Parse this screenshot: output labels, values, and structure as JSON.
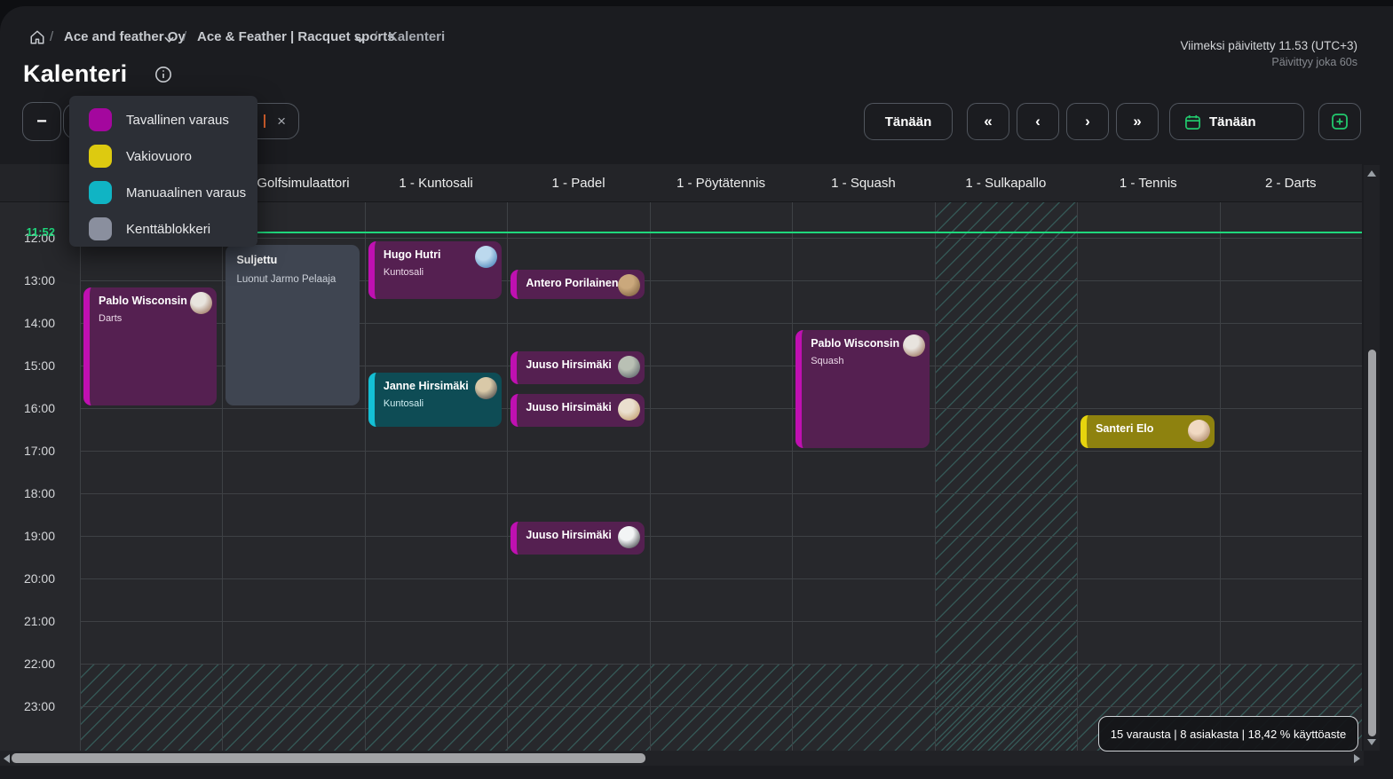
{
  "breadcrumb": {
    "items": [
      {
        "label": "Ace and feather Oy",
        "dropdown": true
      },
      {
        "label": "Ace & Feather | Racquet sports",
        "dropdown": true
      },
      {
        "label": "Kalenteri",
        "dropdown": false
      }
    ]
  },
  "meta": {
    "last_updated": "Viimeksi päivitetty 11.53 (UTC+3)",
    "refresh_note": "Päivittyy joka 60s"
  },
  "page": {
    "title": "Kalenteri"
  },
  "toolbar": {
    "zoom_out_label": "−",
    "filter_chip": {
      "visible_text": "a",
      "close_icon": "×"
    },
    "today_label": "Tänään",
    "nav_prev_fast": "«",
    "nav_prev": "‹",
    "nav_next": "›",
    "nav_next_fast": "»",
    "date_picker_label": "Tänään"
  },
  "legend": {
    "items": [
      {
        "label": "Tavallinen varaus",
        "color": "#a4079e",
        "type": "normal"
      },
      {
        "label": "Vakiovuoro",
        "color": "#ddca10",
        "type": "standing"
      },
      {
        "label": "Manuaalinen varaus",
        "color": "#10b4c4",
        "type": "manual"
      },
      {
        "label": "Kenttäblokkeri",
        "color": "#8a8f9e",
        "type": "blocker"
      }
    ]
  },
  "event_styles": {
    "normal": {
      "border": "#bf10b1",
      "bg": "#552051",
      "sub": "#ecd9e9"
    },
    "manual": {
      "border": "#14c0d5",
      "bg": "#0e4c55",
      "sub": "#cfeef2"
    },
    "standing": {
      "border": "#e6d40e",
      "bg": "#8e820f",
      "sub": "#f3edc4"
    },
    "blocker": {
      "border": "#3f4551",
      "bg": "#3f4551",
      "sub": "#ccd1d9"
    }
  },
  "accent": {
    "green": "#1fd77c"
  },
  "calendar": {
    "current_time": "11:52",
    "hours": [
      "12:00",
      "13:00",
      "14:00",
      "15:00",
      "16:00",
      "17:00",
      "18:00",
      "19:00",
      "20:00",
      "21:00",
      "22:00",
      "23:00"
    ],
    "columns": [
      "1 - Darts",
      "1 - Golfsimulaattori",
      "1 - Kuntosali",
      "1 - Padel",
      "1 - Pöytätennis",
      "1 - Squash",
      "1 - Sulkapallo",
      "1 - Tennis",
      "2 - Darts"
    ],
    "closed_columns": [
      6
    ],
    "closed_from": "22:00",
    "events": [
      {
        "column": 0,
        "start": "13:05",
        "end": "16:00",
        "title": "Pablo Wisconsin",
        "subtitle": "Darts",
        "type": "normal",
        "avatar": [
          "#e8e4de",
          "#8a5a40"
        ]
      },
      {
        "column": 1,
        "start": "12:05",
        "end": "16:00",
        "title": "Suljettu",
        "subtitle": "Luonut Jarmo Pelaaja",
        "type": "blocker"
      },
      {
        "column": 2,
        "start": "12:00",
        "end": "13:30",
        "title": "Hugo Hutri",
        "subtitle": "Kuntosali",
        "type": "normal",
        "avatar": [
          "#bcd9ee",
          "#2f6fae"
        ]
      },
      {
        "column": 2,
        "start": "15:05",
        "end": "16:30",
        "title": "Janne Hirsimäki",
        "subtitle": "Kuntosali",
        "type": "manual",
        "avatar": [
          "#d9c9a8",
          "#2a2d36"
        ]
      },
      {
        "column": 3,
        "start": "12:40",
        "end": "13:30",
        "title": "Antero Porilainen",
        "subtitle": "",
        "type": "normal",
        "avatar": [
          "#caa87c",
          "#6e5234"
        ]
      },
      {
        "column": 3,
        "start": "14:35",
        "end": "15:30",
        "title": "Juuso Hirsimäki",
        "subtitle": "",
        "type": "normal",
        "avatar": [
          "#b9c0b4",
          "#474f58"
        ]
      },
      {
        "column": 3,
        "start": "15:35",
        "end": "16:30",
        "title": "Juuso Hirsimäki",
        "subtitle": "",
        "type": "normal",
        "avatar": [
          "#eadfce",
          "#b98f58"
        ]
      },
      {
        "column": 3,
        "start": "18:35",
        "end": "19:30",
        "title": "Juuso Hirsimäki",
        "subtitle": "",
        "type": "normal",
        "avatar": [
          "#f2f4f5",
          "#202428"
        ]
      },
      {
        "column": 5,
        "start": "14:05",
        "end": "17:00",
        "title": "Pablo Wisconsin",
        "subtitle": "Squash",
        "type": "normal",
        "avatar": [
          "#e8e4de",
          "#8a5a40"
        ]
      },
      {
        "column": 7,
        "start": "16:05",
        "end": "17:00",
        "title": "Santeri Elo",
        "subtitle": "",
        "type": "standing",
        "avatar": [
          "#f0d9c2",
          "#9a7250"
        ]
      },
      {
        "column": 9,
        "start": "12:40",
        "end": "13:30",
        "title": "",
        "subtitle": "",
        "type": "normal",
        "clipped": true
      }
    ]
  },
  "footer": {
    "stats": "15 varausta | 8 asiakasta | 18,42 % käyttöaste"
  }
}
